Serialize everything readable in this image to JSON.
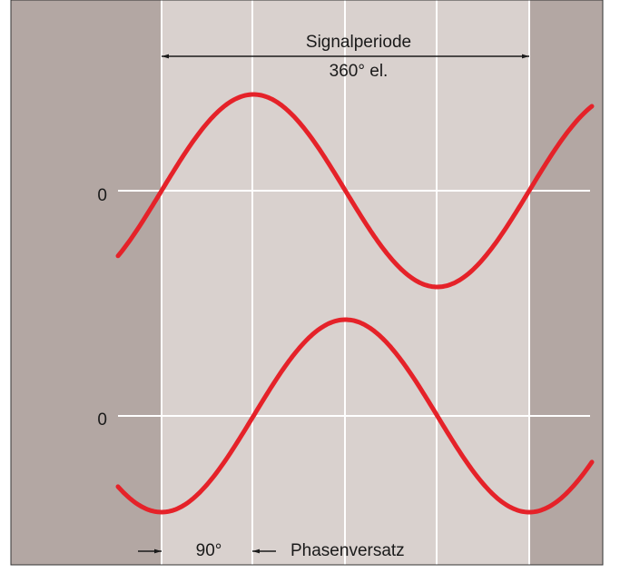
{
  "diagram": {
    "period_label": "Signalperiode",
    "period_value": "360° el.",
    "zero_labels": [
      "0",
      "0"
    ],
    "phase_value": "90°",
    "phase_label": "Phasenversatz"
  }
}
